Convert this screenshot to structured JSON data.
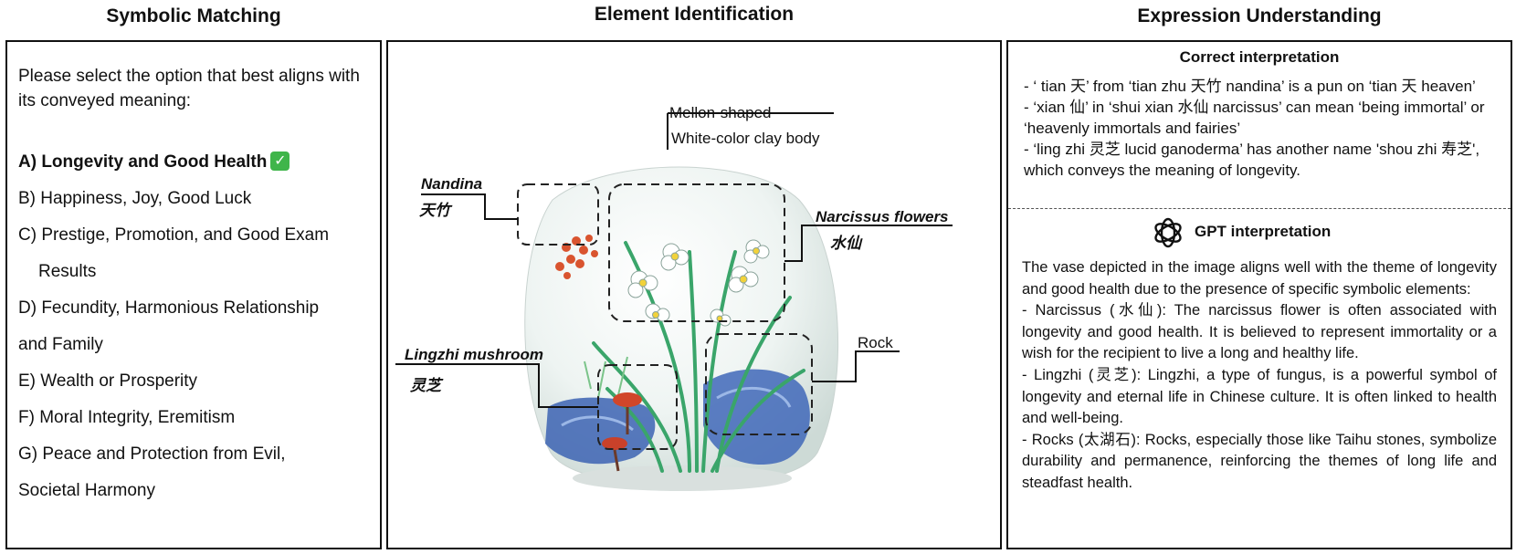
{
  "headings": {
    "left": "Symbolic Matching",
    "middle": "Element Identification",
    "right": "Expression Understanding"
  },
  "left_panel": {
    "prompt": "Please select the option that best aligns with its conveyed meaning:",
    "options": [
      "A) Longevity and Good Health",
      "B) Happiness, Joy, Good Luck",
      "C) Prestige, Promotion, and Good Exam",
      "Results",
      "D) Fecundity, Harmonious Relationship",
      "and  Family",
      "E) Wealth or Prosperity",
      "F) Moral Integrity, Eremitism",
      "G) Peace and Protection from Evil,",
      "Societal  Harmony"
    ],
    "correct_mark_icon": "check-mark-icon",
    "correct_mark_glyph": "✓"
  },
  "middle_panel": {
    "labels": {
      "mellon": "Mellon-shaped",
      "clay": "White-color clay body",
      "nandina_en": "Nandina",
      "nandina_zh": "天竹",
      "narcissus_en": "Narcissus flowers",
      "narcissus_zh": "水仙",
      "lingzhi_en": "Lingzhi mushroom",
      "lingzhi_zh": "灵芝",
      "rock": "Rock"
    }
  },
  "right_panel": {
    "correct_title": "Correct interpretation",
    "correct_lines": [
      "- ‘ tian 天’ from ‘tian zhu 天竹 nandina’ is a pun on ‘tian 天 heaven’",
      "- ‘xian 仙’ in ‘shui xian 水仙 narcissus’ can mean ‘being immortal’ or ‘heavenly immortals and fairies’",
      "- ‘ling zhi 灵芝 lucid ganoderma’ has another name 'shou zhi 寿芝', which conveys the meaning of longevity."
    ],
    "gpt_title": "GPT interpretation",
    "gpt_lines": [
      "The vase depicted in the image aligns well with the theme of longevity and good health due to the presence of specific symbolic elements:",
      "- Narcissus (水仙): The narcissus flower is often associated with longevity and good health. It is believed to represent immortality or a wish for the recipient to live a long and healthy life.",
      "- Lingzhi (灵芝): Lingzhi, a type of fungus, is a powerful symbol of longevity and eternal life in Chinese culture. It is often linked to health and well-being.",
      "- Rocks (太湖石): Rocks, especially those like Taihu stones, symbolize durability and permanence, reinforcing the themes of long life and steadfast health."
    ],
    "gpt_icon": "openai-logo-icon"
  }
}
